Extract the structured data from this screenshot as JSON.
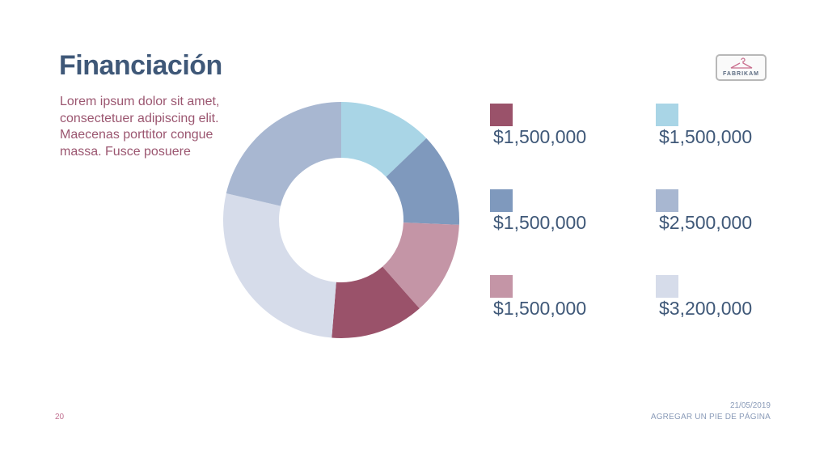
{
  "slide": {
    "title": "Financiación",
    "body": "Lorem ipsum dolor sit amet, consectetuer adipiscing elit. Maecenas porttitor congue massa. Fusce posuere",
    "logo_text": "FABRIKAM",
    "footer_date": "21/05/2019",
    "footer_text": "AGREGAR UN PIE DE PÁGINA",
    "page_number": "20"
  },
  "chart_data": {
    "type": "pie",
    "donut": true,
    "labels": [
      "$1,500,000",
      "$1,500,000",
      "$1,500,000",
      "$2,500,000",
      "$1,500,000",
      "$3,200,000"
    ],
    "values": [
      1500000,
      1500000,
      1500000,
      2500000,
      1500000,
      3200000
    ],
    "slice_order": [
      1,
      2,
      4,
      0,
      5,
      3
    ],
    "colors": [
      "#9a526a",
      "#a9d5e6",
      "#7f99bd",
      "#a8b7d1",
      "#c495a6",
      "#d6dcea"
    ],
    "legend_placement": "right"
  }
}
